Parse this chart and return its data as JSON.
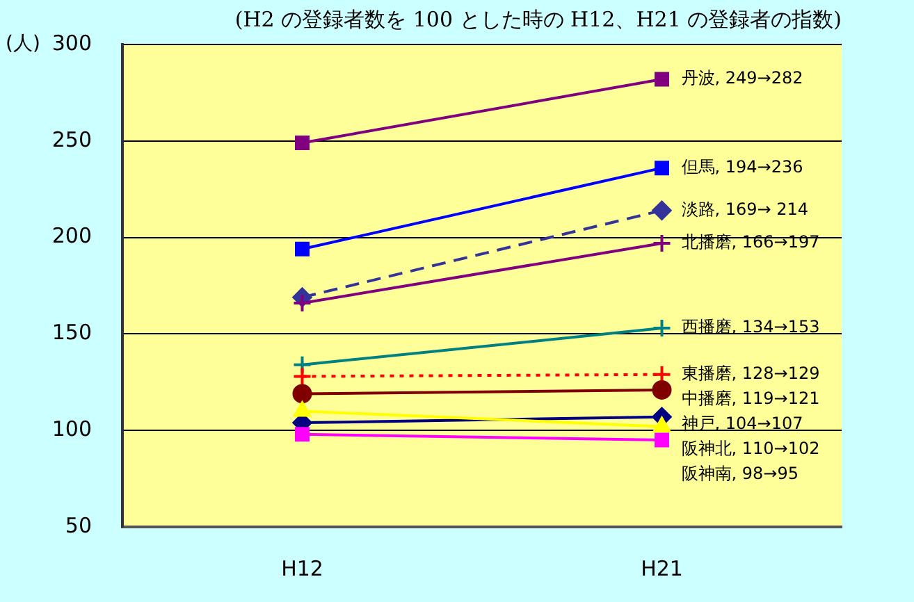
{
  "chart_data": {
    "type": "line",
    "subtitle": "(H2 の登録者数を 100 とした時の H12、H21 の登録者の指数)",
    "ylabel": "(人)",
    "categories": [
      "H12",
      "H21"
    ],
    "ylim": [
      50,
      300
    ],
    "yticks": [
      50,
      100,
      150,
      200,
      250,
      300
    ],
    "grid": "y",
    "legend": false,
    "series": [
      {
        "color": "#800080",
        "values": [
          249,
          282
        ],
        "marker": "square",
        "line_style": "solid"
      },
      {
        "color": "#0000ff",
        "values": [
          194,
          236
        ],
        "marker": "square",
        "line_style": "solid"
      },
      {
        "color": "#333399",
        "values": [
          169,
          214
        ],
        "marker": "diamond",
        "line_style": "dashed"
      },
      {
        "color": "#800080",
        "values": [
          166,
          197
        ],
        "marker": "cross",
        "line_style": "solid"
      },
      {
        "color": "#008080",
        "values": [
          134,
          153
        ],
        "marker": "cross",
        "line_style": "solid"
      },
      {
        "color": "#ff0000",
        "values": [
          128,
          129
        ],
        "marker": "cross",
        "line_style": "dotted"
      },
      {
        "color": "#800000",
        "values": [
          119,
          121
        ],
        "marker": "circle",
        "line_style": "solid"
      },
      {
        "color": "#000080",
        "values": [
          104,
          107
        ],
        "marker": "diamond",
        "line_style": "solid"
      },
      {
        "color": "#ffff00",
        "values": [
          110,
          102
        ],
        "marker": "triangle",
        "line_style": "solid"
      },
      {
        "color": "#ff00ff",
        "values": [
          98,
          95
        ],
        "marker": "square",
        "line_style": "solid"
      }
    ],
    "annotations": [
      {
        "text": "丹波, 249→282",
        "x": "H21",
        "y": 282
      },
      {
        "text": "但馬, 194→236",
        "x": "H21",
        "y": 236
      },
      {
        "text": "淡路, 169→ 214",
        "x": "H21",
        "y": 214
      },
      {
        "text": "北播磨, 166→197",
        "x": "H21",
        "y": 197
      },
      {
        "text": "西播磨, 134→153",
        "x": "H21",
        "y": 153
      },
      {
        "text": "東播磨, 128→129",
        "x": "H21",
        "y": 129
      },
      {
        "text": "中播磨, 119→121",
        "x": "H21",
        "y": 121
      },
      {
        "text": "神戸, 104→107",
        "x": "H21",
        "y": 107
      },
      {
        "text": "阪神北, 110→102",
        "x": "H21",
        "y": 102
      },
      {
        "text": "阪神南, 98→95",
        "x": "H21",
        "y": 95
      }
    ]
  }
}
